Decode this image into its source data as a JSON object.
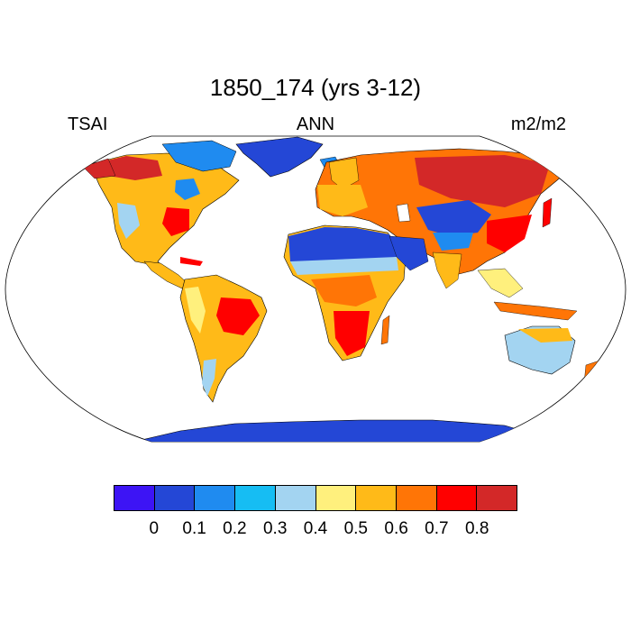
{
  "title": "1850_174 (yrs 3-12)",
  "left_label": "TSAI",
  "center_label": "ANN",
  "right_label": "m2/m2",
  "colorbar": {
    "colors": [
      "#3d14f5",
      "#2447d6",
      "#1f8bf0",
      "#16bdf3",
      "#a3d4f1",
      "#fff07d",
      "#ffba18",
      "#ff7506",
      "#ff0000",
      "#d32828"
    ],
    "labels": [
      "0",
      "0.1",
      "0.2",
      "0.3",
      "0.4",
      "0.5",
      "0.6",
      "0.7",
      "0.8"
    ]
  },
  "map": {
    "projection": "Robinson-like ellipse",
    "ocean_color": "#ffffff",
    "outline_color": "#000000"
  }
}
